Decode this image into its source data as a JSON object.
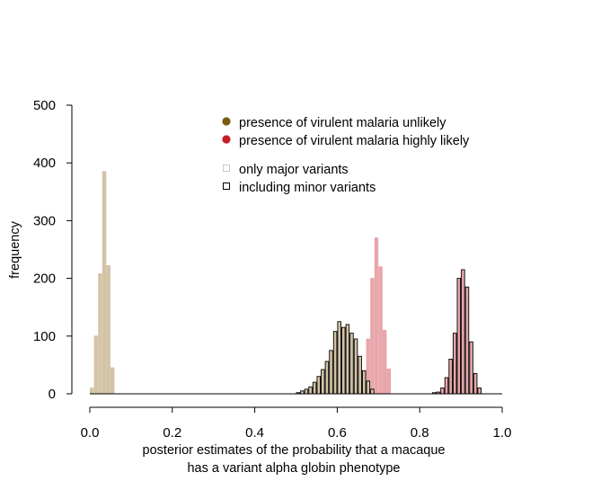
{
  "chart_data": {
    "type": "bar",
    "xlabel": [
      "posterior estimates of the probability that a macaque",
      "has a variant alpha globin phenotype"
    ],
    "ylabel": "frequency",
    "xlim": [
      0,
      1
    ],
    "ylim": [
      0,
      500
    ],
    "x_ticks": [
      0.0,
      0.2,
      0.4,
      0.6,
      0.8,
      1.0
    ],
    "x_tick_labels": [
      "0.0",
      "0.2",
      "0.4",
      "0.6",
      "0.8",
      "1.0"
    ],
    "y_ticks": [
      0,
      100,
      200,
      300,
      400,
      500
    ],
    "y_tick_labels": [
      "0",
      "100",
      "200",
      "300",
      "400",
      "500"
    ],
    "bin_width": 0.01,
    "grid": false,
    "legend": {
      "placement": "top-center",
      "colors": [
        {
          "label": "presence of virulent malaria unlikely",
          "color": "#7a5a10"
        },
        {
          "label": "presence of virulent malaria highly likely",
          "color": "#c41e24"
        }
      ],
      "styles": [
        {
          "label": "only major variants",
          "outline": "#c8c8c8"
        },
        {
          "label": "including minor variants",
          "outline": "#000000"
        }
      ]
    },
    "series": [
      {
        "group": "malaria-unlikely",
        "variants": "only-major",
        "fill": "#d4c4a6",
        "stroke": "#d4c4a6",
        "x": [
          0.0,
          0.01,
          0.02,
          0.03,
          0.04,
          0.05
        ],
        "values": [
          10,
          100,
          208,
          385,
          222,
          45
        ]
      },
      {
        "group": "malaria-likely",
        "variants": "only-major",
        "fill": "#e8a6aa",
        "stroke": "#e8a6aa",
        "x": [
          0.64,
          0.65,
          0.66,
          0.67,
          0.68,
          0.69,
          0.7,
          0.71,
          0.72
        ],
        "values": [
          5,
          22,
          40,
          95,
          200,
          270,
          220,
          110,
          43
        ]
      },
      {
        "group": "malaria-unlikely",
        "variants": "including-minor",
        "fill": "#d4c4a6",
        "stroke": "#000000",
        "x": [
          0.5,
          0.51,
          0.52,
          0.53,
          0.54,
          0.55,
          0.56,
          0.57,
          0.58,
          0.59,
          0.6,
          0.61,
          0.62,
          0.63,
          0.64,
          0.65,
          0.66,
          0.67,
          0.68
        ],
        "values": [
          2,
          5,
          8,
          12,
          20,
          30,
          42,
          56,
          75,
          108,
          125,
          115,
          120,
          105,
          95,
          65,
          40,
          22,
          8
        ]
      },
      {
        "group": "malaria-likely",
        "variants": "including-minor",
        "fill": "#e8a6aa",
        "stroke": "#000000",
        "x": [
          0.83,
          0.84,
          0.85,
          0.86,
          0.87,
          0.88,
          0.89,
          0.9,
          0.91,
          0.92,
          0.93,
          0.94
        ],
        "values": [
          2,
          3,
          10,
          28,
          60,
          105,
          200,
          215,
          185,
          90,
          35,
          10
        ]
      }
    ]
  }
}
